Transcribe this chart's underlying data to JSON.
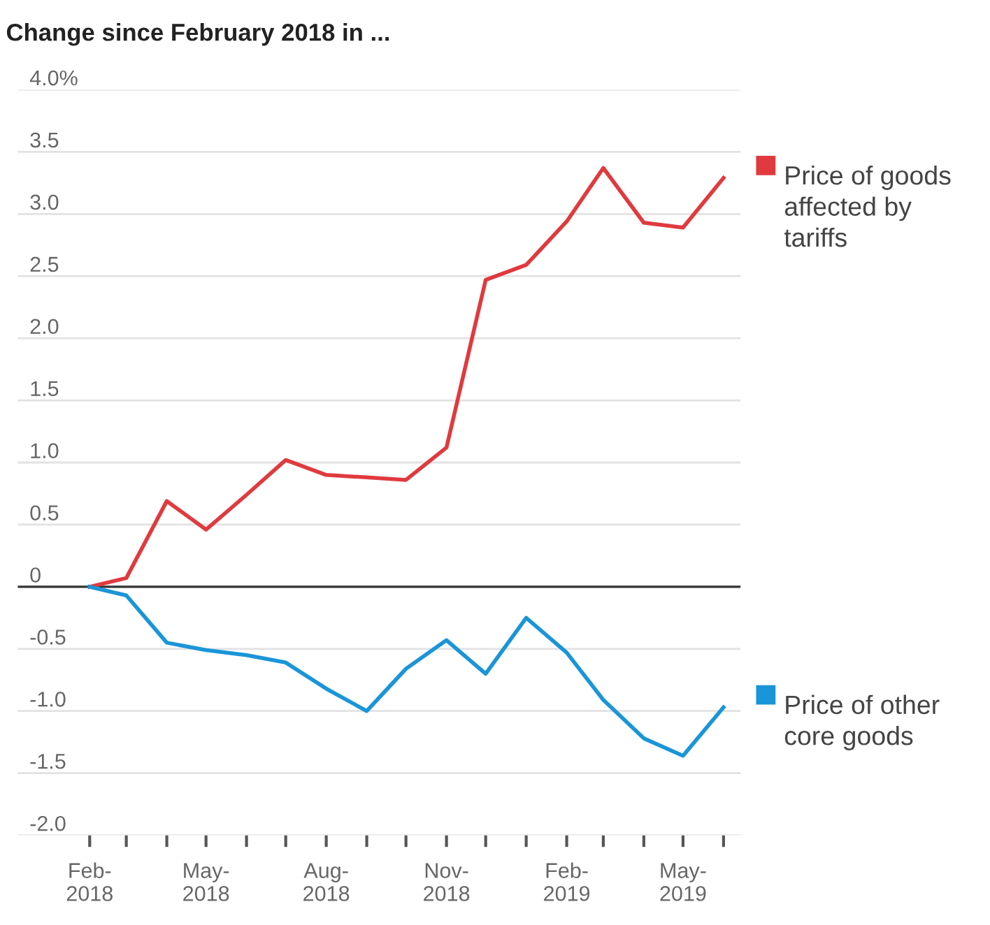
{
  "chart_data": {
    "type": "line",
    "title": "Change since February 2018 in ...",
    "x": [
      "2018-02",
      "2018-03",
      "2018-04",
      "2018-05",
      "2018-06",
      "2018-07",
      "2018-08",
      "2018-09",
      "2018-10",
      "2018-11",
      "2018-12",
      "2019-01",
      "2019-02",
      "2019-03",
      "2019-04",
      "2019-05",
      "2019-06"
    ],
    "series": [
      {
        "name": "Price of goods\naffected by\ntariffs",
        "color": "#e03a3e",
        "values": [
          0,
          0.07,
          0.69,
          0.46,
          0.74,
          1.02,
          0.9,
          0.88,
          0.86,
          1.12,
          2.47,
          2.59,
          2.94,
          3.37,
          2.93,
          2.89,
          3.29
        ]
      },
      {
        "name": "Price of other\ncore goods",
        "color": "#1a95d8",
        "values": [
          0,
          -0.07,
          -0.45,
          -0.51,
          -0.55,
          -0.61,
          -0.82,
          -1.0,
          -0.66,
          -0.43,
          -0.7,
          -0.25,
          -0.53,
          -0.91,
          -1.22,
          -1.36,
          -0.97
        ]
      }
    ],
    "xlim": [
      "2017-12-08",
      "2019-06-14"
    ],
    "xticks": [
      {
        "value": "2018-02",
        "label": "Feb-\n2018"
      },
      {
        "value": "2018-03",
        "label": null
      },
      {
        "value": "2018-04",
        "label": null
      },
      {
        "value": "2018-05",
        "label": "May-\n2018"
      },
      {
        "value": "2018-06",
        "label": null
      },
      {
        "value": "2018-07",
        "label": null
      },
      {
        "value": "2018-08",
        "label": "Aug-\n2018"
      },
      {
        "value": "2018-09",
        "label": null
      },
      {
        "value": "2018-10",
        "label": null
      },
      {
        "value": "2018-11",
        "label": "Nov-\n2018"
      },
      {
        "value": "2018-12",
        "label": null
      },
      {
        "value": "2019-01",
        "label": null
      },
      {
        "value": "2019-02",
        "label": "Feb-\n2019"
      },
      {
        "value": "2019-03",
        "label": null
      },
      {
        "value": "2019-04",
        "label": null
      },
      {
        "value": "2019-05",
        "label": "May-\n2019"
      },
      {
        "value": "2019-06",
        "label": null
      }
    ],
    "ylim": [
      -2.0,
      4.0
    ],
    "yticks": [
      {
        "value": -2.0,
        "label": "-2.0"
      },
      {
        "value": -1.5,
        "label": "-1.5"
      },
      {
        "value": -1.0,
        "label": "-1.0"
      },
      {
        "value": -0.5,
        "label": "-0.5"
      },
      0,
      {
        "value": 0.5,
        "label": "0.5"
      },
      {
        "value": 1.0,
        "label": "1.0"
      },
      {
        "value": 1.5,
        "label": "1.5"
      },
      {
        "value": 2.0,
        "label": "2.0"
      },
      {
        "value": 2.5,
        "label": "2.5"
      },
      {
        "value": 3.0,
        "label": "3.0"
      },
      {
        "value": 3.5,
        "label": "3.5"
      },
      {
        "value": 4.0,
        "label": "4.0%"
      }
    ],
    "ref_lines": [
      {
        "axis": "y",
        "value": 0,
        "color": "#333333"
      }
    ],
    "grid": "y",
    "legend": "right",
    "marker": "none",
    "line_style": "solid"
  }
}
